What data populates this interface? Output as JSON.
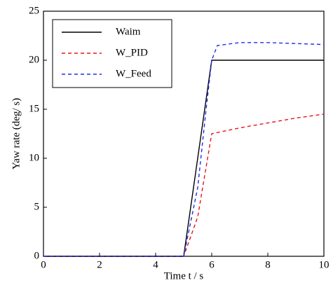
{
  "chart_data": {
    "type": "line",
    "xlabel": "Time t / s",
    "ylabel": "Yaw rate (deg/ s)",
    "xlim": [
      0,
      10
    ],
    "xticks": [
      0,
      2,
      4,
      6,
      8,
      10
    ],
    "ylim": [
      0,
      25
    ],
    "yticks": [
      0,
      5,
      10,
      15,
      20,
      25
    ],
    "legend": "upper left",
    "series": [
      {
        "name": "Waim",
        "color": "#000000",
        "dash": "solid",
        "x": [
          0,
          5,
          6,
          10
        ],
        "values": [
          0,
          0,
          20,
          20
        ]
      },
      {
        "name": "W_PID",
        "color": "#e8141c",
        "dash": "dashed",
        "x": [
          0,
          5,
          5.5,
          6,
          7,
          8,
          9,
          10
        ],
        "values": [
          0,
          0,
          4,
          12.5,
          13.1,
          13.6,
          14.1,
          14.5
        ]
      },
      {
        "name": "W_Feed",
        "color": "#1e2ee8",
        "dash": "dashed",
        "x": [
          0,
          5,
          5.5,
          5.8,
          6,
          6.2,
          7,
          8,
          9,
          10
        ],
        "values": [
          0,
          0,
          7,
          15,
          20,
          21.5,
          21.8,
          21.8,
          21.7,
          21.6
        ]
      }
    ]
  }
}
